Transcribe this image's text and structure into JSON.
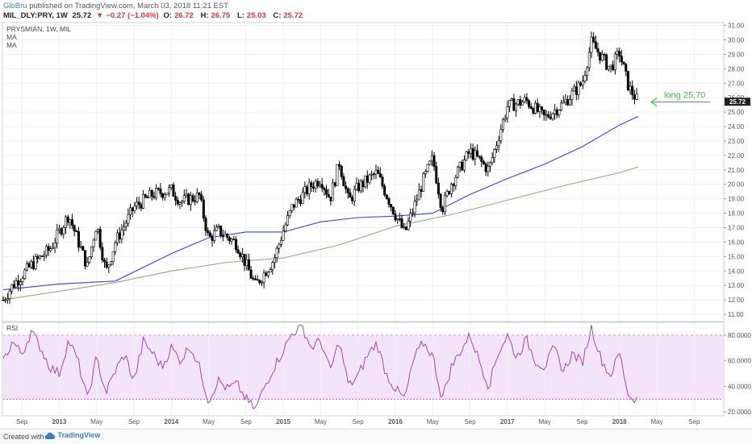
{
  "header": {
    "author": "GloBru",
    "published": "published on TradingView.com, March 03, 2018 11:21 EST",
    "symbol": "MIL_DLY:PRY, 1W",
    "last": "25.72",
    "change": "−0.27 (−1.04%)",
    "ohlc_o_label": "O:",
    "ohlc_o": "26.72",
    "ohlc_h_label": "H:",
    "ohlc_h": "26.75",
    "ohlc_l_label": "L:",
    "ohlc_l": "25.03",
    "ohlc_c_label": "C:",
    "ohlc_c": "25.72"
  },
  "price_panel": {
    "legend": [
      "PRYSMIAN, 1W, MIL",
      "MA",
      "MA"
    ],
    "annotation": "long 25,70",
    "last_price_label": "25.72",
    "colors": {
      "candle": "#000000",
      "ma_fast": "#3b3ee0",
      "ma_slow": "#8fae7a",
      "annotation": "#4caf50",
      "price_tag": "#222222"
    }
  },
  "rsi_panel": {
    "label": "RSI",
    "levels": [
      80,
      30
    ],
    "colors": {
      "line": "#9c4aa8",
      "band": "#f3e4f9",
      "level": "#d34fd3"
    }
  },
  "footer": {
    "created": "Created with",
    "brand": "TradingView"
  },
  "chart_data": [
    {
      "type": "candlestick",
      "title": "PRYSMIAN, 1W, MIL",
      "y_ticks": [
        "11.00",
        "12.00",
        "13.00",
        "14.00",
        "15.00",
        "16.00",
        "17.00",
        "18.00",
        "19.00",
        "20.00",
        "21.00",
        "22.00",
        "23.00",
        "24.00",
        "25.00",
        "26.00",
        "27.00",
        "28.00",
        "29.00",
        "30.00",
        "31.00"
      ],
      "ylim": [
        10.5,
        31.2
      ],
      "x_ticks": [
        "Sep",
        "2013",
        "May",
        "Sep",
        "2014",
        "May",
        "Sep",
        "2015",
        "May",
        "Sep",
        "2016",
        "May",
        "Sep",
        "2017",
        "May",
        "Sep",
        "2018",
        "May",
        "Sep"
      ],
      "close_path": [
        {
          "x": "2012-07",
          "y": 12.0
        },
        {
          "x": "2012-08",
          "y": 13.0
        },
        {
          "x": "2012-10",
          "y": 14.4
        },
        {
          "x": "2012-12",
          "y": 15.5
        },
        {
          "x": "2013-02",
          "y": 17.9
        },
        {
          "x": "2013-04",
          "y": 14.3
        },
        {
          "x": "2013-05",
          "y": 17.3
        },
        {
          "x": "2013-06",
          "y": 13.9
        },
        {
          "x": "2013-07",
          "y": 16.0
        },
        {
          "x": "2013-09",
          "y": 18.4
        },
        {
          "x": "2013-11",
          "y": 19.3
        },
        {
          "x": "2014-01",
          "y": 19.6
        },
        {
          "x": "2014-02",
          "y": 18.8
        },
        {
          "x": "2014-04",
          "y": 19.2
        },
        {
          "x": "2014-05",
          "y": 16.2
        },
        {
          "x": "2014-06",
          "y": 16.8
        },
        {
          "x": "2014-08",
          "y": 15.9
        },
        {
          "x": "2014-10",
          "y": 13.0
        },
        {
          "x": "2014-12",
          "y": 14.8
        },
        {
          "x": "2015-01",
          "y": 16.8
        },
        {
          "x": "2015-02",
          "y": 18.5
        },
        {
          "x": "2015-04",
          "y": 19.9
        },
        {
          "x": "2015-05",
          "y": 20.4
        },
        {
          "x": "2015-06",
          "y": 19.0
        },
        {
          "x": "2015-07",
          "y": 21.5
        },
        {
          "x": "2015-08",
          "y": 18.8
        },
        {
          "x": "2015-09",
          "y": 19.8
        },
        {
          "x": "2015-11",
          "y": 20.8
        },
        {
          "x": "2016-01",
          "y": 17.9
        },
        {
          "x": "2016-02",
          "y": 16.6
        },
        {
          "x": "2016-04",
          "y": 20.3
        },
        {
          "x": "2016-05",
          "y": 21.8
        },
        {
          "x": "2016-06",
          "y": 18.3
        },
        {
          "x": "2016-07",
          "y": 20.1
        },
        {
          "x": "2016-09",
          "y": 22.3
        },
        {
          "x": "2016-11",
          "y": 21.0
        },
        {
          "x": "2017-01",
          "y": 25.4
        },
        {
          "x": "2017-03",
          "y": 25.8
        },
        {
          "x": "2017-05",
          "y": 24.6
        },
        {
          "x": "2017-07",
          "y": 25.6
        },
        {
          "x": "2017-09",
          "y": 27.0
        },
        {
          "x": "2017-10",
          "y": 29.8
        },
        {
          "x": "2017-11",
          "y": 28.9
        },
        {
          "x": "2017-12",
          "y": 28.0
        },
        {
          "x": "2018-01",
          "y": 29.1
        },
        {
          "x": "2018-02",
          "y": 26.7
        },
        {
          "x": "2018-03",
          "y": 25.72
        }
      ],
      "series": [
        {
          "name": "MA",
          "values": [
            {
              "x": "2012-07",
              "y": 12.7
            },
            {
              "x": "2013-01",
              "y": 13.1
            },
            {
              "x": "2013-07",
              "y": 13.3
            },
            {
              "x": "2014-01",
              "y": 15.2
            },
            {
              "x": "2014-05",
              "y": 16.3
            },
            {
              "x": "2014-09",
              "y": 16.7
            },
            {
              "x": "2015-01",
              "y": 16.7
            },
            {
              "x": "2015-05",
              "y": 17.4
            },
            {
              "x": "2015-09",
              "y": 17.7
            },
            {
              "x": "2016-01",
              "y": 17.8
            },
            {
              "x": "2016-05",
              "y": 18.0
            },
            {
              "x": "2016-09",
              "y": 19.3
            },
            {
              "x": "2017-01",
              "y": 20.4
            },
            {
              "x": "2017-05",
              "y": 21.4
            },
            {
              "x": "2017-09",
              "y": 22.6
            },
            {
              "x": "2018-01",
              "y": 24.1
            },
            {
              "x": "2018-03",
              "y": 24.7
            }
          ]
        },
        {
          "name": "MA",
          "values": [
            {
              "x": "2012-07",
              "y": 12.0
            },
            {
              "x": "2013-01",
              "y": 12.6
            },
            {
              "x": "2013-07",
              "y": 13.2
            },
            {
              "x": "2014-01",
              "y": 14.0
            },
            {
              "x": "2014-07",
              "y": 14.6
            },
            {
              "x": "2015-01",
              "y": 14.9
            },
            {
              "x": "2015-07",
              "y": 15.8
            },
            {
              "x": "2016-01",
              "y": 17.1
            },
            {
              "x": "2016-07",
              "y": 17.9
            },
            {
              "x": "2017-01",
              "y": 18.9
            },
            {
              "x": "2017-07",
              "y": 19.9
            },
            {
              "x": "2018-01",
              "y": 20.8
            },
            {
              "x": "2018-03",
              "y": 21.2
            }
          ]
        }
      ],
      "annotations": [
        {
          "text": "long 25,70",
          "y": 25.7
        }
      ],
      "last_value": 25.72
    },
    {
      "type": "line",
      "title": "RSI",
      "y_ticks": [
        "20.0000",
        "40.0000",
        "60.0000",
        "80.0000"
      ],
      "ylim": [
        17,
        90
      ],
      "levels": [
        80,
        30
      ],
      "values": [
        {
          "x": "2012-07",
          "y": 60
        },
        {
          "x": "2012-08",
          "y": 75
        },
        {
          "x": "2012-09",
          "y": 65
        },
        {
          "x": "2012-10",
          "y": 83
        },
        {
          "x": "2012-11",
          "y": 70
        },
        {
          "x": "2012-12",
          "y": 55
        },
        {
          "x": "2013-01",
          "y": 50
        },
        {
          "x": "2013-02",
          "y": 76
        },
        {
          "x": "2013-03",
          "y": 60
        },
        {
          "x": "2013-04",
          "y": 30
        },
        {
          "x": "2013-05",
          "y": 62
        },
        {
          "x": "2013-06",
          "y": 35
        },
        {
          "x": "2013-07",
          "y": 52
        },
        {
          "x": "2013-08",
          "y": 65
        },
        {
          "x": "2013-09",
          "y": 44
        },
        {
          "x": "2013-10",
          "y": 75
        },
        {
          "x": "2013-11",
          "y": 66
        },
        {
          "x": "2013-12",
          "y": 55
        },
        {
          "x": "2014-01",
          "y": 70
        },
        {
          "x": "2014-02",
          "y": 60
        },
        {
          "x": "2014-03",
          "y": 72
        },
        {
          "x": "2014-04",
          "y": 55
        },
        {
          "x": "2014-05",
          "y": 28
        },
        {
          "x": "2014-06",
          "y": 45
        },
        {
          "x": "2014-07",
          "y": 38
        },
        {
          "x": "2014-08",
          "y": 42
        },
        {
          "x": "2014-09",
          "y": 30
        },
        {
          "x": "2014-10",
          "y": 22
        },
        {
          "x": "2014-11",
          "y": 40
        },
        {
          "x": "2014-12",
          "y": 55
        },
        {
          "x": "2015-01",
          "y": 68
        },
        {
          "x": "2015-02",
          "y": 82
        },
        {
          "x": "2015-03",
          "y": 87
        },
        {
          "x": "2015-04",
          "y": 70
        },
        {
          "x": "2015-05",
          "y": 76
        },
        {
          "x": "2015-06",
          "y": 52
        },
        {
          "x": "2015-07",
          "y": 75
        },
        {
          "x": "2015-08",
          "y": 40
        },
        {
          "x": "2015-09",
          "y": 48
        },
        {
          "x": "2015-10",
          "y": 64
        },
        {
          "x": "2015-11",
          "y": 74
        },
        {
          "x": "2015-12",
          "y": 50
        },
        {
          "x": "2016-01",
          "y": 38
        },
        {
          "x": "2016-02",
          "y": 30
        },
        {
          "x": "2016-03",
          "y": 62
        },
        {
          "x": "2016-04",
          "y": 74
        },
        {
          "x": "2016-05",
          "y": 64
        },
        {
          "x": "2016-06",
          "y": 30
        },
        {
          "x": "2016-07",
          "y": 55
        },
        {
          "x": "2016-08",
          "y": 68
        },
        {
          "x": "2016-09",
          "y": 80
        },
        {
          "x": "2016-10",
          "y": 60
        },
        {
          "x": "2016-11",
          "y": 40
        },
        {
          "x": "2016-12",
          "y": 66
        },
        {
          "x": "2017-01",
          "y": 80
        },
        {
          "x": "2017-02",
          "y": 62
        },
        {
          "x": "2017-03",
          "y": 77
        },
        {
          "x": "2017-04",
          "y": 60
        },
        {
          "x": "2017-05",
          "y": 55
        },
        {
          "x": "2017-06",
          "y": 70
        },
        {
          "x": "2017-07",
          "y": 52
        },
        {
          "x": "2017-08",
          "y": 66
        },
        {
          "x": "2017-09",
          "y": 58
        },
        {
          "x": "2017-10",
          "y": 86
        },
        {
          "x": "2017-11",
          "y": 62
        },
        {
          "x": "2017-12",
          "y": 48
        },
        {
          "x": "2018-01",
          "y": 66
        },
        {
          "x": "2018-02",
          "y": 32
        },
        {
          "x": "2018-03",
          "y": 30
        }
      ]
    }
  ]
}
